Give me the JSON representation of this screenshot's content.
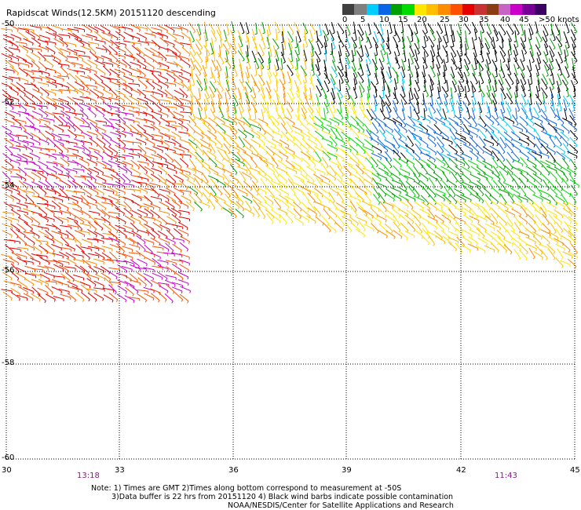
{
  "title": "Rapidscat Winds(12.5KM) 20151120 descending",
  "legend": {
    "labels": [
      "0",
      "5",
      "10",
      "15",
      "20",
      "25",
      "30",
      "35",
      "40",
      "45",
      ">50 knots"
    ],
    "colors": [
      "#3f3f3f",
      "#7f7f7f",
      "#00cdff",
      "#0a64e6",
      "#00a000",
      "#00dc00",
      "#ffe600",
      "#ffbe00",
      "#ff8c00",
      "#ff5000",
      "#e60000",
      "#c83232",
      "#8c3c14",
      "#c864c8",
      "#c800c8",
      "#780096",
      "#3c0064"
    ]
  },
  "map": {
    "lat_labels": [
      "-50",
      "-52",
      "-54",
      "-56",
      "-58",
      "-60"
    ],
    "lon_labels": [
      "30",
      "33",
      "36",
      "39",
      "42",
      "45"
    ],
    "time_labels": [
      "13:18",
      "11:43"
    ]
  },
  "note": {
    "line1": "Note: 1) Times are GMT 2)Times along bottom correspond to measurement at -50S",
    "line2": "3)Data buffer is 22 hrs from 20151120 4) Black wind barbs indicate possible contamination",
    "line3": "NOAA/NESDIS/Center for Satellite Applications and Research"
  }
}
